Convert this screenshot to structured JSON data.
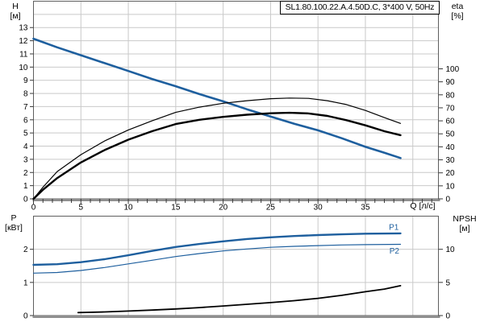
{
  "title": "SL1.80.100.22.A.4.50D.C, 3*400 V, 50Hz",
  "colors": {
    "blue": "#1e5f9e",
    "black": "#000000",
    "grid": "#c9c9c9",
    "frame": "#5f5f5f",
    "axis_line": "#8f8f8f",
    "tick": "#3a3a3a",
    "text": "#000000",
    "title_border": "#000000",
    "background": "#ffffff"
  },
  "chart_data": [
    {
      "type": "line",
      "title": "SL1.80.100.22.A.4.50D.C, 3*400 V, 50Hz",
      "xlabel": "Q [л/с]",
      "ylabel_left": {
        "name": "H",
        "unit": "[м]"
      },
      "ylabel_right": {
        "name": "eta",
        "unit": "[%]"
      },
      "xlim": [
        0,
        42.7
      ],
      "ylim_left": [
        0,
        15
      ],
      "ylim_right": [
        0,
        152
      ],
      "grid": true,
      "legend_position": "none",
      "x_tick_labels": [
        0,
        5,
        10,
        15,
        20,
        25,
        30,
        35
      ],
      "y_ticks_left": [
        0,
        1,
        2,
        3,
        4,
        5,
        6,
        7,
        8,
        9,
        10,
        11,
        12,
        13
      ],
      "y_ticks_right": [
        0,
        10,
        20,
        30,
        40,
        50,
        60,
        70,
        80,
        90,
        100
      ],
      "x_grid": [
        5,
        10,
        15,
        20,
        25,
        30,
        35,
        40
      ],
      "y_grid": [
        1,
        2,
        3,
        4,
        5,
        6,
        7,
        8,
        9,
        10,
        11,
        12,
        13,
        14
      ],
      "series": [
        {
          "name": "H",
          "axis": "left",
          "color": "blue",
          "width": 2.6,
          "x": [
            0,
            2.5,
            5,
            7.5,
            10,
            12.5,
            15,
            17.5,
            20,
            22.5,
            25,
            27.5,
            30,
            32.5,
            35,
            37,
            38.7
          ],
          "y": [
            12.15,
            11.5,
            10.9,
            10.3,
            9.7,
            9.1,
            8.55,
            7.95,
            7.4,
            6.8,
            6.25,
            5.7,
            5.2,
            4.6,
            3.95,
            3.5,
            3.1
          ]
        },
        {
          "name": "eta1",
          "axis": "right",
          "color": "black",
          "width": 1.2,
          "x": [
            0,
            1,
            2.5,
            5,
            7.5,
            10,
            12.5,
            15,
            17.5,
            20,
            22.5,
            25,
            27,
            29,
            31,
            33,
            35,
            37,
            38.7
          ],
          "y": [
            0,
            9,
            21,
            34,
            44.5,
            53,
            60,
            66.5,
            70.5,
            73.5,
            75.5,
            77,
            77.5,
            77.3,
            75.5,
            72.5,
            68,
            62.5,
            58
          ]
        },
        {
          "name": "eta2",
          "axis": "right",
          "color": "black",
          "width": 2.4,
          "x": [
            0,
            1,
            2.5,
            5,
            7.5,
            10,
            12.5,
            15,
            17.5,
            20,
            22.5,
            25,
            27,
            29,
            31,
            33,
            35,
            37,
            38.7
          ],
          "y": [
            0,
            7,
            16,
            28,
            37.5,
            45.5,
            52,
            57.5,
            60.8,
            63,
            64.7,
            65.8,
            66.2,
            65.7,
            63.8,
            60.5,
            56.5,
            52,
            49
          ]
        }
      ]
    },
    {
      "type": "line",
      "xlabel": "",
      "ylabel_left": {
        "name": "P",
        "unit": "[кВт]"
      },
      "ylabel_right": {
        "name": "NPSH",
        "unit": "[м]"
      },
      "xlim": [
        0,
        42.7
      ],
      "ylim_left": [
        0,
        3
      ],
      "ylim_right": [
        0,
        15
      ],
      "grid": true,
      "legend_position": "none",
      "x_tick_labels": [],
      "y_ticks_left": [
        0,
        1,
        2
      ],
      "y_ticks_right": [
        0,
        5,
        10
      ],
      "x_grid": [
        5,
        10,
        15,
        20,
        25,
        30,
        35,
        40
      ],
      "y_grid": [
        1,
        2
      ],
      "series": [
        {
          "name": "P1",
          "axis": "left",
          "color": "blue",
          "width": 2.4,
          "x": [
            0,
            2.5,
            5,
            7.5,
            10,
            12.5,
            15,
            17.5,
            20,
            22.5,
            25,
            27.5,
            30,
            32.5,
            35,
            38.7
          ],
          "y": [
            1.53,
            1.55,
            1.61,
            1.7,
            1.82,
            1.95,
            2.07,
            2.16,
            2.24,
            2.31,
            2.36,
            2.4,
            2.43,
            2.45,
            2.47,
            2.48
          ]
        },
        {
          "name": "P2",
          "axis": "left",
          "color": "blue",
          "width": 1.2,
          "x": [
            0,
            2.5,
            5,
            7.5,
            10,
            12.5,
            15,
            17.5,
            20,
            22.5,
            25,
            27.5,
            30,
            32.5,
            35,
            38.7
          ],
          "y": [
            1.28,
            1.3,
            1.36,
            1.45,
            1.56,
            1.67,
            1.78,
            1.87,
            1.95,
            2.01,
            2.06,
            2.09,
            2.11,
            2.13,
            2.14,
            2.15
          ]
        },
        {
          "name": "NPSH",
          "axis": "right",
          "color": "black",
          "width": 1.8,
          "x": [
            4.7,
            7.5,
            10,
            12.5,
            15,
            17.5,
            20,
            22.5,
            25,
            27.5,
            30,
            32.5,
            35,
            37,
            38.7
          ],
          "y": [
            0.45,
            0.55,
            0.68,
            0.83,
            1.0,
            1.2,
            1.45,
            1.7,
            1.95,
            2.25,
            2.6,
            3.05,
            3.6,
            4.0,
            4.5
          ]
        }
      ],
      "annotations": [
        {
          "text": "P1",
          "x": 38.0,
          "y": 2.67,
          "axis": "left"
        },
        {
          "text": "P2",
          "x": 38.05,
          "y": 1.96,
          "axis": "left"
        }
      ]
    }
  ]
}
